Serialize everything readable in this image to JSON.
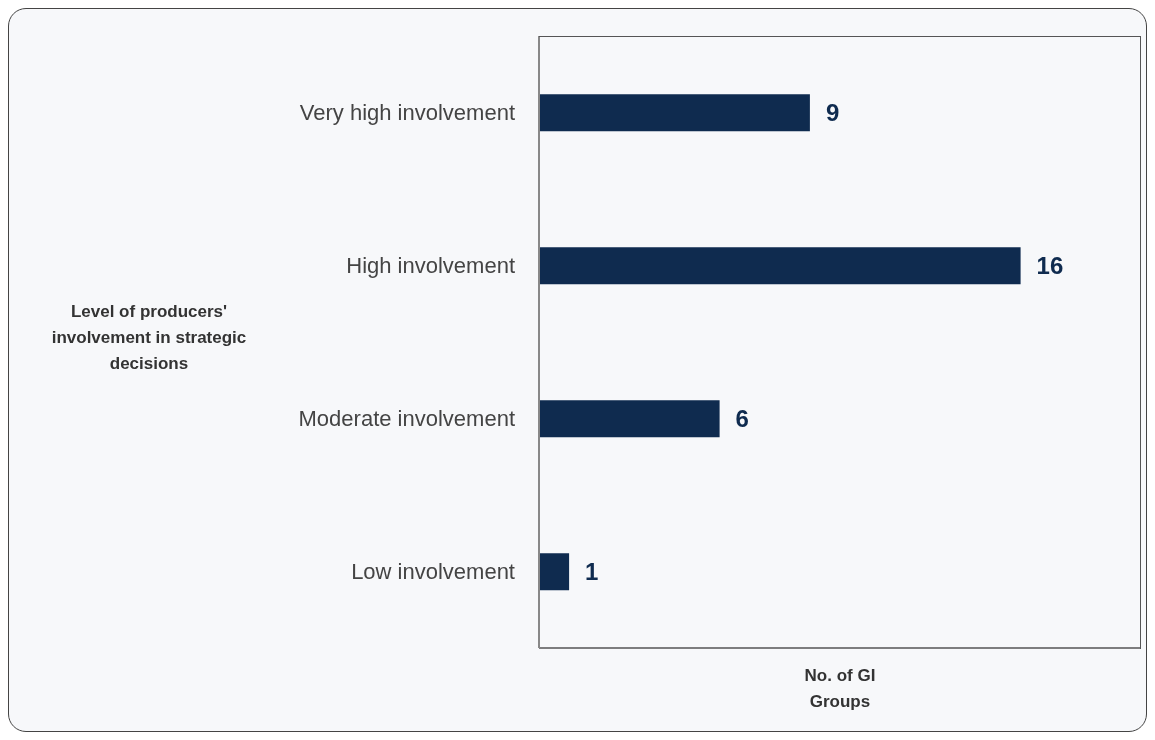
{
  "chart_data": {
    "type": "bar",
    "orientation": "horizontal",
    "categories": [
      "Very high involvement",
      "High involvement",
      "Moderate involvement",
      "Low involvement"
    ],
    "values": [
      9,
      16,
      6,
      1
    ],
    "color": "#0f2b4f",
    "data_labels": true,
    "xlim": [
      0,
      20
    ],
    "xlabel": "No. of GI Groups",
    "ylabel": "Level of producers' involvement in strategic decisions",
    "legend": false,
    "grid": false
  }
}
